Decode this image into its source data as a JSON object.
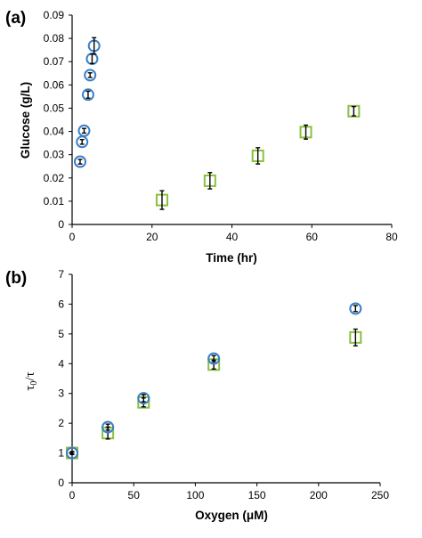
{
  "chart_data": [
    {
      "panel": "(a)",
      "type": "scatter",
      "xlabel": "Time (hr)",
      "ylabel": "Glucose (g/L)",
      "xlim": [
        0,
        80
      ],
      "ylim": [
        0,
        0.09
      ],
      "xticks": [
        "0",
        "20",
        "40",
        "60",
        "80"
      ],
      "yticks": [
        "0",
        "0.01",
        "0.02",
        "0.03",
        "0.04",
        "0.05",
        "0.06",
        "0.07",
        "0.08",
        "0.09"
      ],
      "grid": false,
      "series": [
        {
          "marker": "circle",
          "color": "#3a7fc6",
          "points": [
            {
              "x": 2.0,
              "y": 0.027,
              "err": 0.001
            },
            {
              "x": 2.5,
              "y": 0.0355,
              "err": 0.001
            },
            {
              "x": 3.0,
              "y": 0.0403,
              "err": 0.001
            },
            {
              "x": 4.0,
              "y": 0.0558,
              "err": 0.0015
            },
            {
              "x": 4.5,
              "y": 0.0642,
              "err": 0.001
            },
            {
              "x": 5.0,
              "y": 0.0712,
              "err": 0.002
            },
            {
              "x": 5.5,
              "y": 0.0768,
              "err": 0.0035
            }
          ]
        },
        {
          "marker": "square",
          "color": "#8cbf3f",
          "points": [
            {
              "x": 22.5,
              "y": 0.0105,
              "err": 0.004
            },
            {
              "x": 34.5,
              "y": 0.0188,
              "err": 0.0035
            },
            {
              "x": 46.5,
              "y": 0.0295,
              "err": 0.0035
            },
            {
              "x": 58.5,
              "y": 0.0397,
              "err": 0.003
            },
            {
              "x": 70.5,
              "y": 0.0487,
              "err": 0.002
            }
          ]
        }
      ]
    },
    {
      "panel": "(b)",
      "type": "scatter",
      "xlabel": "Oxygen (μM)",
      "ylabel": "τ0/τ",
      "xlim": [
        0,
        250
      ],
      "ylim": [
        0,
        7
      ],
      "xticks": [
        "0",
        "50",
        "100",
        "150",
        "200",
        "250"
      ],
      "yticks": [
        "0",
        "1",
        "2",
        "3",
        "4",
        "5",
        "6",
        "7"
      ],
      "grid": false,
      "series": [
        {
          "marker": "circle",
          "color": "#3a7fc6",
          "points": [
            {
              "x": 0,
              "y": 1.0,
              "err": 0.03
            },
            {
              "x": 29,
              "y": 1.87,
              "err": 0.1
            },
            {
              "x": 58,
              "y": 2.84,
              "err": 0.12
            },
            {
              "x": 115,
              "y": 4.17,
              "err": 0.1
            },
            {
              "x": 230,
              "y": 5.85,
              "err": 0.1
            }
          ]
        },
        {
          "marker": "square",
          "color": "#8cbf3f",
          "points": [
            {
              "x": 0,
              "y": 1.0,
              "err": 0.05
            },
            {
              "x": 29,
              "y": 1.67,
              "err": 0.2
            },
            {
              "x": 58,
              "y": 2.7,
              "err": 0.15
            },
            {
              "x": 115,
              "y": 3.97,
              "err": 0.15
            },
            {
              "x": 230,
              "y": 4.88,
              "err": 0.28
            }
          ]
        }
      ]
    }
  ]
}
